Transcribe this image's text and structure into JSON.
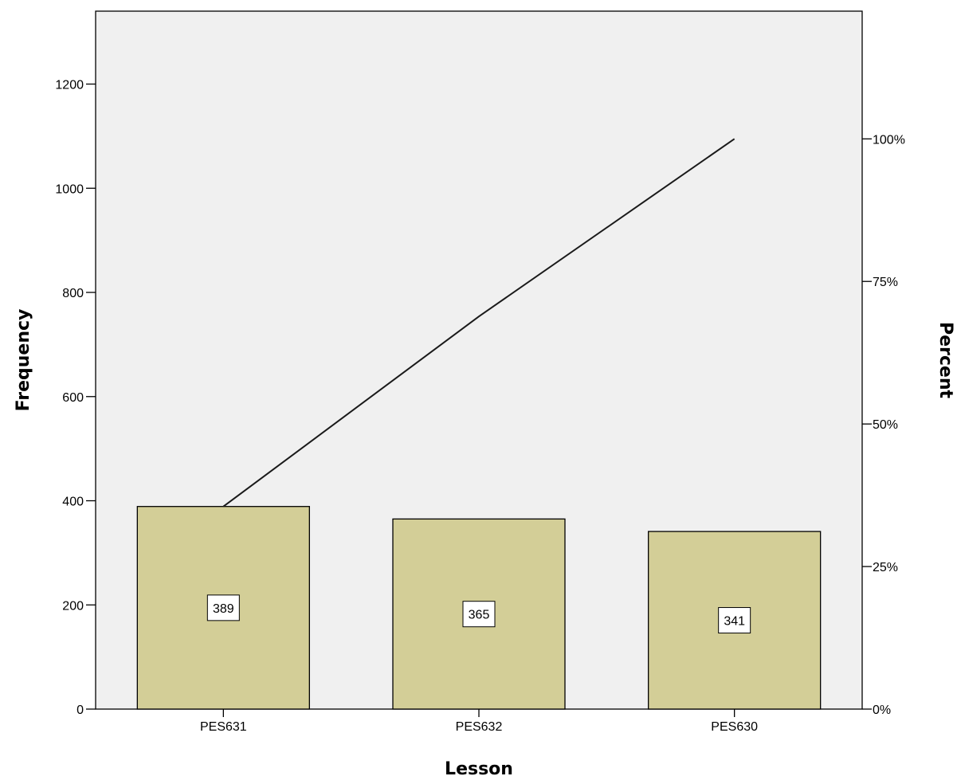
{
  "chart_data": {
    "type": "bar",
    "categories": [
      "PES631",
      "PES632",
      "PES630"
    ],
    "values": [
      389,
      365,
      341
    ],
    "data_labels": [
      "389",
      "365",
      "341"
    ],
    "cumulative_percent": [
      35.53,
      68.86,
      100
    ],
    "xlabel": "Lesson",
    "ylabel": "Frequency",
    "y2label": "Percent",
    "ylim": [
      0,
      1340
    ],
    "yticks": [
      0,
      200,
      400,
      600,
      800,
      1000,
      1200
    ],
    "y2lim": [
      0,
      122.4
    ],
    "y2ticks": [
      0,
      25,
      50,
      75,
      100
    ],
    "y2ticklabels": [
      "0%",
      "25%",
      "50%",
      "75%",
      "100%"
    ],
    "grid": false,
    "colors": {
      "plot_background": "#f0f0f0",
      "bar_fill": "#d3ce97",
      "bar_stroke": "#000000",
      "line": "#1a1a1a"
    }
  }
}
